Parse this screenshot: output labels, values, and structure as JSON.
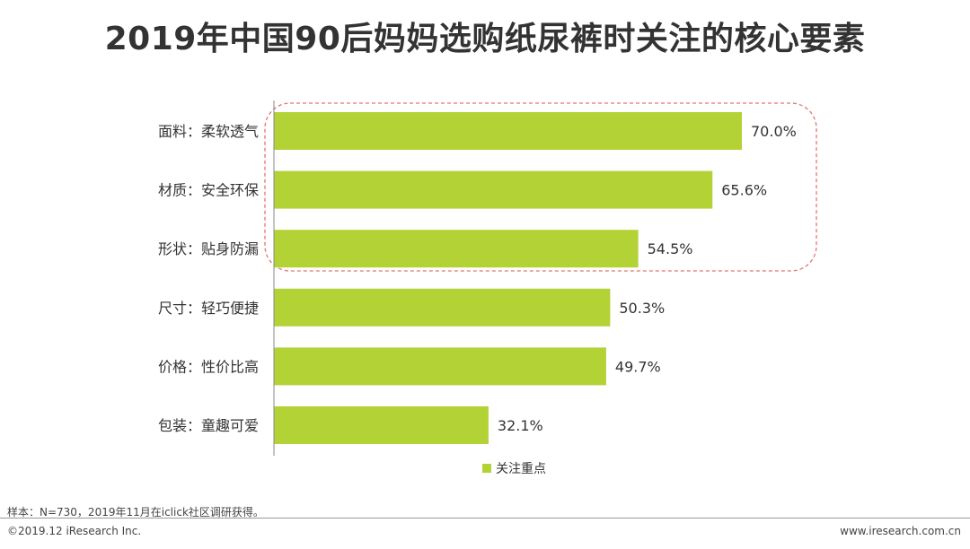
{
  "title": "2019年中国90后妈妈选购纸尿裤时关注的核心要素",
  "chart_data": {
    "type": "bar",
    "orientation": "horizontal",
    "categories": [
      "面料：柔软透气",
      "材质：安全环保",
      "形状：贴身防漏",
      "尺寸：轻巧便捷",
      "价格：性价比高",
      "包装：童趣可爱"
    ],
    "values": [
      70.0,
      65.6,
      54.5,
      50.3,
      49.7,
      32.1
    ],
    "data_labels": [
      "70.0%",
      "65.6%",
      "54.5%",
      "50.3%",
      "49.7%",
      "32.1%"
    ],
    "series": [
      {
        "name": "关注重点",
        "values": [
          70.0,
          65.6,
          54.5,
          50.3,
          49.7,
          32.1
        ]
      }
    ],
    "legend_position": "bottom",
    "highlight": "top 3 categories enclosed by dashed rounded box",
    "bar_color": "#b3d235",
    "highlight_color": "#e57373",
    "grid": false
  },
  "footer": {
    "note": "样本：N=730，2019年11月在iclick社区调研获得。",
    "copyright": "©2019.12 iResearch Inc.",
    "website": "www.iresearch.com.cn"
  }
}
